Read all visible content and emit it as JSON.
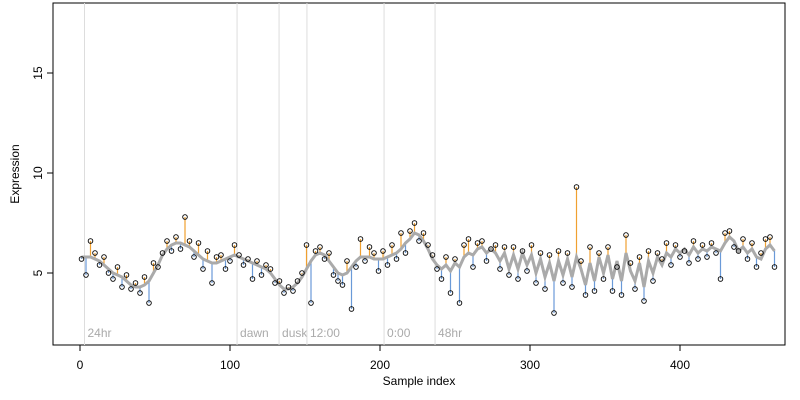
{
  "chart_data": {
    "type": "scatter",
    "x_label": "Sample index",
    "y_label": "Expression",
    "x": [
      1,
      4,
      7,
      10,
      13,
      16,
      19,
      22,
      25,
      28,
      31,
      34,
      37,
      40,
      43,
      46,
      49,
      52,
      55,
      58,
      61,
      64,
      67,
      70,
      73,
      76,
      79,
      82,
      85,
      88,
      91,
      94,
      97,
      100,
      103,
      106,
      109,
      112,
      115,
      118,
      121,
      124,
      127,
      130,
      133,
      136,
      139,
      142,
      145,
      148,
      151,
      154,
      157,
      160,
      163,
      166,
      169,
      172,
      175,
      178,
      181,
      184,
      187,
      190,
      193,
      196,
      199,
      202,
      205,
      208,
      211,
      214,
      217,
      220,
      223,
      226,
      229,
      232,
      235,
      238,
      241,
      244,
      247,
      250,
      253,
      256,
      259,
      262,
      265,
      268,
      271,
      274,
      277,
      280,
      283,
      286,
      289,
      292,
      295,
      298,
      301,
      304,
      307,
      310,
      313,
      316,
      319,
      322,
      325,
      328,
      331,
      334,
      337,
      340,
      343,
      346,
      349,
      352,
      355,
      358,
      361,
      364,
      367,
      370,
      373,
      376,
      379,
      382,
      385,
      388,
      391,
      394,
      397,
      400,
      403,
      406,
      409,
      412,
      415,
      418,
      421,
      424,
      427,
      430,
      433,
      436,
      439,
      442,
      445,
      448,
      451,
      454,
      457,
      460,
      463
    ],
    "values": [
      5.7,
      4.9,
      6.6,
      6.0,
      5.4,
      5.8,
      5.0,
      4.7,
      5.3,
      4.3,
      4.9,
      4.2,
      4.5,
      4.0,
      4.8,
      3.5,
      5.5,
      5.3,
      6.0,
      6.6,
      6.1,
      6.8,
      6.2,
      7.8,
      6.6,
      5.8,
      6.5,
      5.2,
      6.1,
      4.5,
      5.8,
      5.9,
      5.2,
      5.6,
      6.4,
      5.9,
      5.4,
      5.7,
      4.7,
      5.6,
      4.9,
      5.4,
      5.2,
      4.5,
      4.6,
      4.0,
      4.3,
      4.1,
      4.6,
      5.0,
      6.4,
      3.5,
      6.1,
      6.3,
      5.7,
      6.0,
      4.9,
      4.6,
      4.4,
      5.6,
      3.2,
      5.3,
      6.7,
      5.6,
      6.3,
      6.0,
      5.1,
      6.1,
      5.4,
      6.4,
      5.7,
      7.0,
      6.0,
      7.1,
      7.5,
      6.6,
      7.0,
      6.4,
      5.9,
      5.2,
      4.7,
      5.8,
      4.0,
      5.7,
      3.5,
      6.4,
      6.7,
      5.3,
      6.5,
      6.6,
      5.6,
      6.2,
      6.4,
      5.2,
      6.3,
      4.9,
      6.3,
      4.7,
      6.1,
      5.1,
      6.4,
      4.5,
      6.0,
      4.2,
      5.9,
      3.0,
      6.1,
      4.5,
      6.0,
      4.3,
      9.3,
      5.6,
      3.9,
      6.3,
      4.1,
      6.0,
      4.7,
      6.3,
      4.1,
      5.3,
      3.9,
      6.9,
      5.5,
      4.2,
      5.8,
      3.6,
      6.1,
      4.6,
      6.0,
      5.7,
      6.5,
      5.4,
      6.4,
      5.8,
      6.1,
      5.5,
      6.6,
      5.7,
      6.4,
      5.8,
      6.5,
      6.0,
      4.7,
      7.0,
      7.1,
      6.3,
      6.1,
      6.7,
      5.7,
      6.5,
      5.3,
      6.0,
      6.7,
      6.8,
      5.3
    ],
    "fitted": [
      5.8,
      5.8,
      5.8,
      5.7,
      5.6,
      5.4,
      5.2,
      5.0,
      4.9,
      4.8,
      4.6,
      4.4,
      4.3,
      4.3,
      4.4,
      4.6,
      5.0,
      5.4,
      5.9,
      6.2,
      6.4,
      6.5,
      6.5,
      6.4,
      6.3,
      6.1,
      5.9,
      5.7,
      5.6,
      5.5,
      5.5,
      5.6,
      5.7,
      5.8,
      5.9,
      5.8,
      5.7,
      5.6,
      5.5,
      5.4,
      5.3,
      5.2,
      5.0,
      4.7,
      4.4,
      4.2,
      4.2,
      4.3,
      4.5,
      4.8,
      5.2,
      5.6,
      5.9,
      6.0,
      5.9,
      5.6,
      5.3,
      5.0,
      4.9,
      5.0,
      5.3,
      5.6,
      5.8,
      5.8,
      5.8,
      5.7,
      5.7,
      5.7,
      5.8,
      5.9,
      6.0,
      6.2,
      6.5,
      6.7,
      7.0,
      6.9,
      6.6,
      6.2,
      5.7,
      5.4,
      5.2,
      5.4,
      5.1,
      5.5,
      5.3,
      5.8,
      6.0,
      5.9,
      6.2,
      6.3,
      6.0,
      6.2,
      6.0,
      5.6,
      6.0,
      5.2,
      5.9,
      5.2,
      6.0,
      5.4,
      5.9,
      5.0,
      5.7,
      4.8,
      5.5,
      4.6,
      5.6,
      4.9,
      5.7,
      4.8,
      5.8,
      5.2,
      4.4,
      5.5,
      4.6,
      5.8,
      5.0,
      5.9,
      4.7,
      5.6,
      4.6,
      6.0,
      5.1,
      4.6,
      5.5,
      4.3,
      5.6,
      5.0,
      5.8,
      5.4,
      6.0,
      5.8,
      6.2,
      6.0,
      6.2,
      5.9,
      6.3,
      6.0,
      6.2,
      6.1,
      6.3,
      6.2,
      6.1,
      6.5,
      6.8,
      6.6,
      6.1,
      6.3,
      6.0,
      6.2,
      5.8,
      5.7,
      6.2,
      6.4,
      6.1
    ],
    "point_color": "#000000",
    "fitted_color": "#aaaaaa",
    "above_color": "#f0a030",
    "below_color": "#6a9ad8",
    "annotations": [
      {
        "x": 3,
        "label": "24hr"
      },
      {
        "x": 104.7,
        "label": "dawn"
      },
      {
        "x": 132.7,
        "label": "dusk"
      },
      {
        "x": 151.3,
        "label": "12:00"
      },
      {
        "x": 202.7,
        "label": "0:00"
      },
      {
        "x": 236.7,
        "label": "48hr"
      }
    ],
    "xlim": [
      -18,
      470
    ],
    "ylim": [
      1.4,
      18.5
    ],
    "xticks": [
      0,
      100,
      200,
      300,
      400
    ],
    "yticks": [
      5,
      10,
      15
    ]
  }
}
